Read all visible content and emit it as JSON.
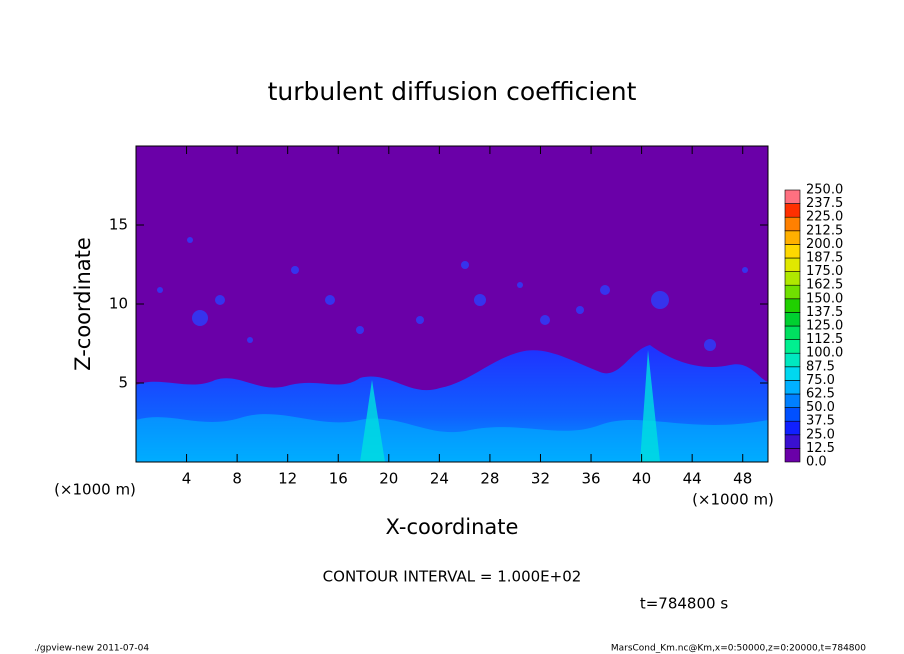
{
  "chart_data": {
    "type": "contour",
    "title": "turbulent diffusion coefficient",
    "xlabel": "X-coordinate",
    "ylabel": "Z-coordinate",
    "xunit": "(×1000 m)",
    "yunit": "(×1000 m)",
    "xlim": [
      0,
      50
    ],
    "ylim": [
      0,
      20
    ],
    "xticks": [
      4,
      8,
      12,
      16,
      20,
      24,
      28,
      32,
      36,
      40,
      44,
      48
    ],
    "yticks": [
      5,
      10,
      15
    ],
    "levels": [
      {
        "value": 0,
        "label": "0.0"
      },
      {
        "value": 12.5,
        "label": "12.5"
      },
      {
        "value": 25,
        "label": "25.0"
      },
      {
        "value": 37.5,
        "label": "37.5"
      },
      {
        "value": 50,
        "label": "50.0"
      },
      {
        "value": 62.5,
        "label": "62.5"
      },
      {
        "value": 75,
        "label": "75.0"
      },
      {
        "value": 87.5,
        "label": "87.5"
      },
      {
        "value": 100,
        "label": "100.0"
      },
      {
        "value": 112.5,
        "label": "112.5"
      },
      {
        "value": 125,
        "label": "125.0"
      },
      {
        "value": 137.5,
        "label": "137.5"
      },
      {
        "value": 150,
        "label": "150.0"
      },
      {
        "value": 162.5,
        "label": "162.5"
      },
      {
        "value": 175,
        "label": "175.0"
      },
      {
        "value": 187.5,
        "label": "187.5"
      },
      {
        "value": 200,
        "label": "200.0"
      },
      {
        "value": 212.5,
        "label": "212.5"
      },
      {
        "value": 225,
        "label": "225.0"
      },
      {
        "value": 237.5,
        "label": "237.5"
      },
      {
        "value": 250,
        "label": "250.0"
      }
    ],
    "colors": [
      "#6a00a8",
      "#3a10d0",
      "#1020ff",
      "#0050ff",
      "#0080ff",
      "#00b0ff",
      "#00d8f0",
      "#00e8c0",
      "#00f090",
      "#00e060",
      "#00d030",
      "#20d000",
      "#70e000",
      "#b0e800",
      "#e0e800",
      "#ffd800",
      "#ffb000",
      "#ff8000",
      "#ff3000",
      "#ff7080"
    ],
    "contour_interval": "CONTOUR INTERVAL = 1.000E+02",
    "time_label": "t=784800 s",
    "footer_left": "./gpview-new  2011-07-04",
    "footer_right": "MarsCond_Km.nc@Km,x=0:50000,z=0:20000,t=784800"
  }
}
